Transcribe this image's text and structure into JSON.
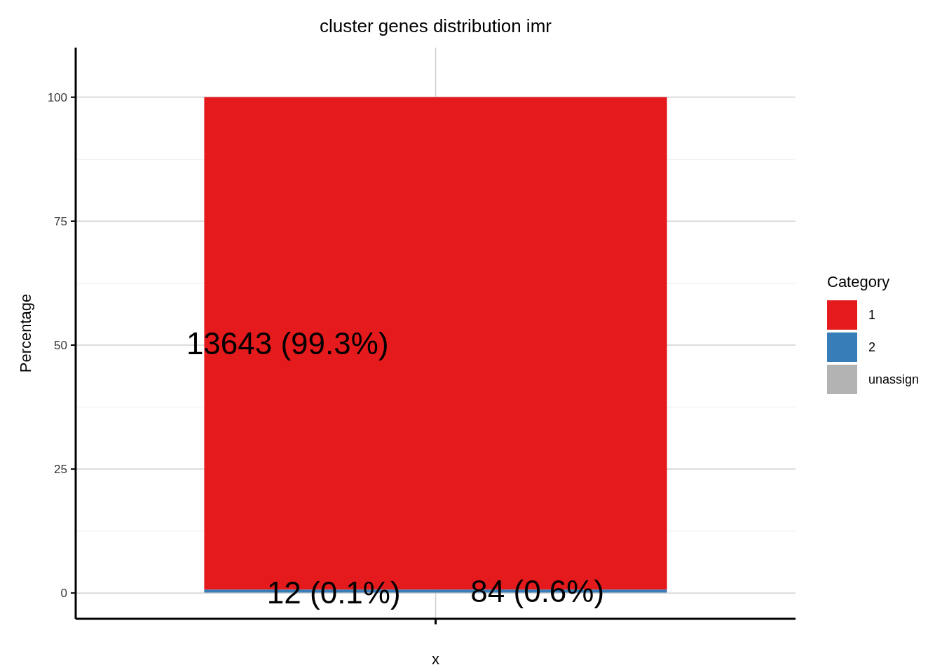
{
  "chart_data": {
    "type": "bar",
    "title": "cluster genes distribution imr",
    "xlabel": "x",
    "ylabel": "Percentage",
    "legend_title": "Category",
    "categories": [
      null
    ],
    "stacked": true,
    "series": [
      {
        "name": "unassign",
        "color": "#b3b3b3",
        "values": [
          0.1
        ],
        "value_labels": [
          "12 (0.1%)"
        ]
      },
      {
        "name": "2",
        "color": "#377eb8",
        "values": [
          0.6
        ],
        "value_labels": [
          "84 (0.6%)"
        ]
      },
      {
        "name": "1",
        "color": "#e41a1c",
        "values": [
          99.3
        ],
        "value_labels": [
          "13643 (99.3%)"
        ]
      }
    ],
    "ylim": [
      -5.2,
      110
    ],
    "yticks": [
      0,
      25,
      50,
      75,
      100
    ],
    "grid": true,
    "legend": "right"
  }
}
